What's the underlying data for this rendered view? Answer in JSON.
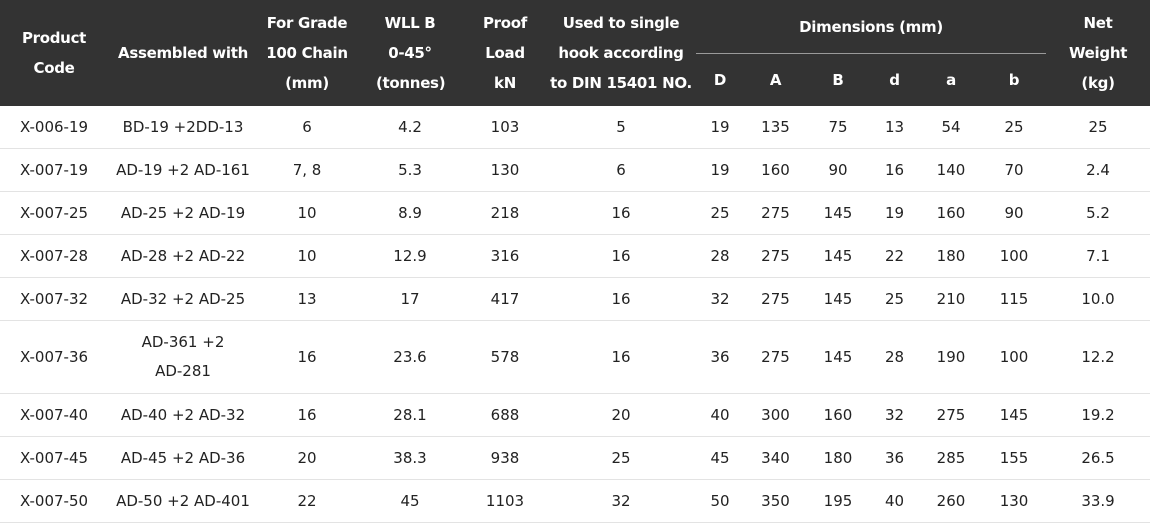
{
  "headers": {
    "product_code": "Product Code",
    "assembled_with": "Assembled with",
    "grade": "For Grade 100 Chain (mm)",
    "wll": "WLL B 0-45° (tonnes)",
    "proof_load": "Proof Load kN",
    "hook": "Used to single hook according to DIN 15401 NO.",
    "dimensions": "Dimensions (mm)",
    "net_weight": "Net Weight (kg)",
    "dim_cols": [
      "D",
      "A",
      "B",
      "d",
      "a",
      "b"
    ]
  },
  "rows": [
    {
      "code": "X-006-19",
      "assembled": "BD-19 +2DD-13",
      "grade": "6",
      "wll": "4.2",
      "proof": "103",
      "hook": "5",
      "D": "19",
      "A": "135",
      "B": "75",
      "d": "13",
      "a": "54",
      "b": "25",
      "weight": "25"
    },
    {
      "code": "X-007-19",
      "assembled": "AD-19 +2 AD-161",
      "grade": "7, 8",
      "wll": "5.3",
      "proof": "130",
      "hook": "6",
      "D": "19",
      "A": "160",
      "B": "90",
      "d": "16",
      "a": "140",
      "b": "70",
      "weight": "2.4"
    },
    {
      "code": "X-007-25",
      "assembled": "AD-25 +2 AD-19",
      "grade": "10",
      "wll": "8.9",
      "proof": "218",
      "hook": "16",
      "D": "25",
      "A": "275",
      "B": "145",
      "d": "19",
      "a": "160",
      "b": "90",
      "weight": "5.2"
    },
    {
      "code": "X-007-28",
      "assembled": "AD-28 +2 AD-22",
      "grade": "10",
      "wll": "12.9",
      "proof": "316",
      "hook": "16",
      "D": "28",
      "A": "275",
      "B": "145",
      "d": "22",
      "a": "180",
      "b": "100",
      "weight": "7.1"
    },
    {
      "code": "X-007-32",
      "assembled": "AD-32 +2 AD-25",
      "grade": "13",
      "wll": "17",
      "proof": "417",
      "hook": "16",
      "D": "32",
      "A": "275",
      "B": "145",
      "d": "25",
      "a": "210",
      "b": "115",
      "weight": "10.0"
    },
    {
      "code": "X-007-36",
      "assembled": "AD-361 +2 AD-281",
      "grade": "16",
      "wll": "23.6",
      "proof": "578",
      "hook": "16",
      "D": "36",
      "A": "275",
      "B": "145",
      "d": "28",
      "a": "190",
      "b": "100",
      "weight": "12.2"
    },
    {
      "code": "X-007-40",
      "assembled": "AD-40 +2 AD-32",
      "grade": "16",
      "wll": "28.1",
      "proof": "688",
      "hook": "20",
      "D": "40",
      "A": "300",
      "B": "160",
      "d": "32",
      "a": "275",
      "b": "145",
      "weight": "19.2"
    },
    {
      "code": "X-007-45",
      "assembled": "AD-45 +2 AD-36",
      "grade": "20",
      "wll": "38.3",
      "proof": "938",
      "hook": "25",
      "D": "45",
      "A": "340",
      "B": "180",
      "d": "36",
      "a": "285",
      "b": "155",
      "weight": "26.5"
    },
    {
      "code": "X-007-50",
      "assembled": "AD-50 +2 AD-401",
      "grade": "22",
      "wll": "45",
      "proof": "1103",
      "hook": "32",
      "D": "50",
      "A": "350",
      "B": "195",
      "d": "40",
      "a": "260",
      "b": "130",
      "weight": "33.9"
    }
  ]
}
